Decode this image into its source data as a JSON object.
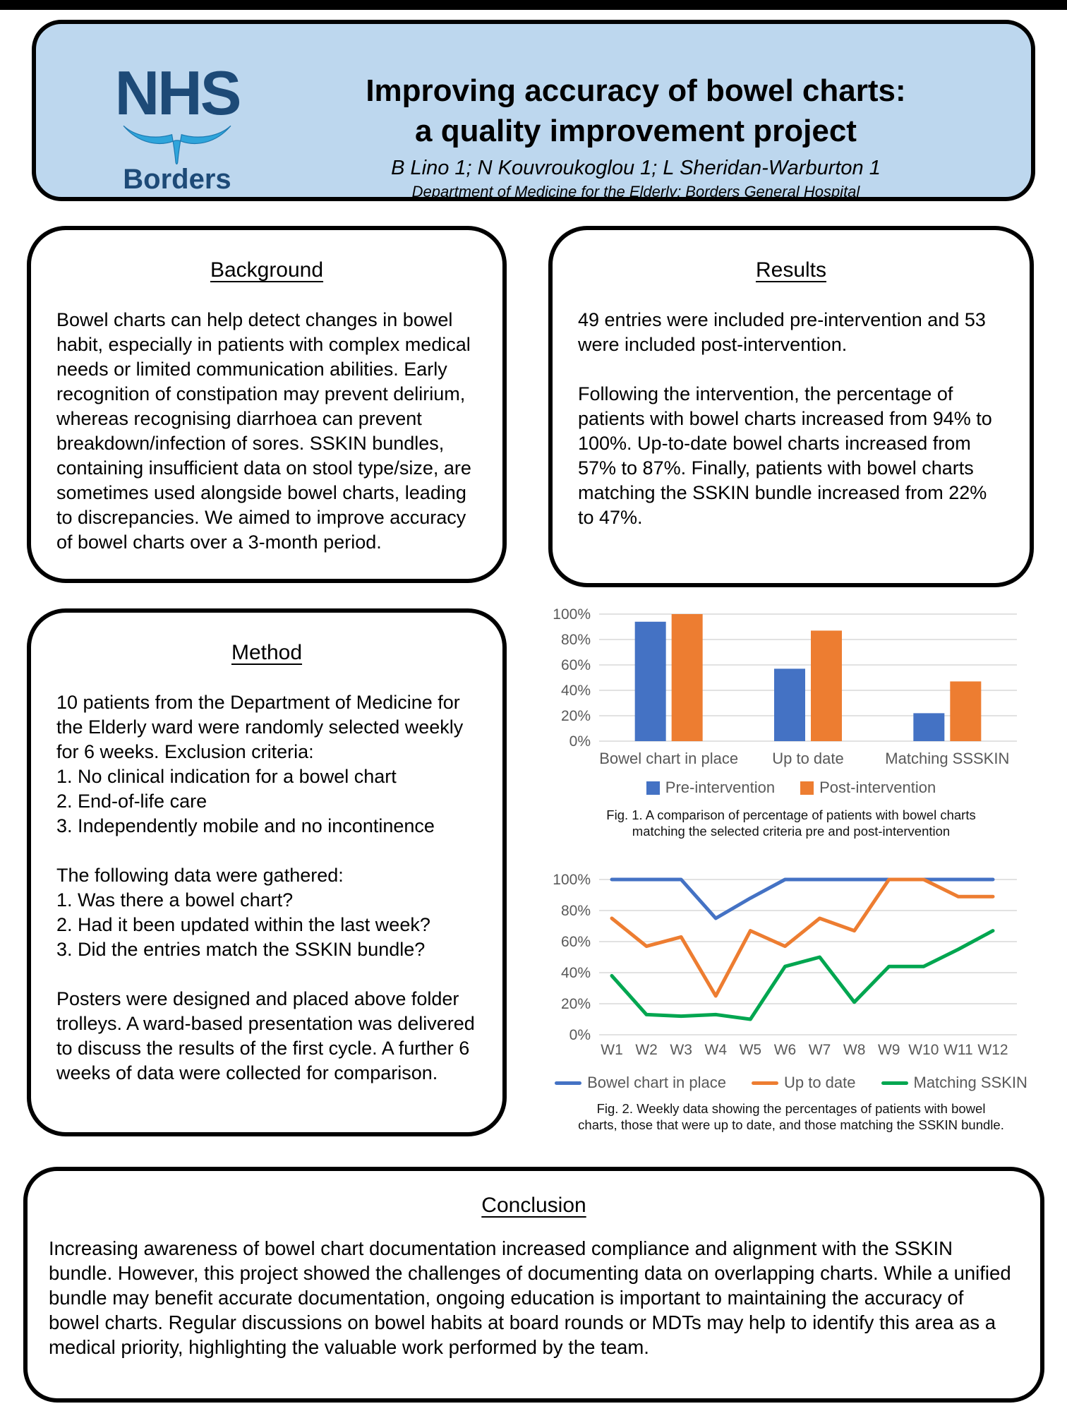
{
  "header": {
    "logo_text": "NHS",
    "logo_subtext": "Borders",
    "title_line1": "Improving accuracy of bowel charts:",
    "title_line2": "a quality improvement project",
    "authors": "B Lino 1; N Kouvroukoglou 1; L Sheridan-Warburton 1",
    "department": "Department of Medicine for the Elderly; Borders General Hospital",
    "background_color": "#bdd7ee",
    "logo_color": "#1d4a77",
    "swoosh_color": "#2fa5db"
  },
  "sections": {
    "background": {
      "heading": "Background",
      "body": "Bowel charts can help detect changes in bowel habit, especially in patients with complex medical needs or limited communication abilities. Early recognition of constipation may prevent delirium, whereas recognising diarrhoea can prevent breakdown/infection of sores. SSKIN bundles, containing insufficient data on stool type/size, are sometimes used alongside bowel charts, leading to discrepancies. We aimed to improve accuracy of bowel charts over a 3-month period."
    },
    "results": {
      "heading": "Results",
      "p1": "49 entries were included pre-intervention and 53 were included post-intervention.",
      "p2": "Following the intervention, the percentage of patients with bowel charts increased from 94% to 100%. Up-to-date bowel charts increased from 57% to 87%. Finally, patients with bowel charts matching the SSKIN bundle increased from 22% to 47%."
    },
    "method": {
      "heading": "Method",
      "p1": "10 patients from the Department of Medicine for the Elderly ward were randomly selected weekly for 6 weeks. Exclusion criteria:",
      "exclusion_list": [
        "1. No clinical indication for a bowel chart",
        "2. End-of-life care",
        "3. Independently mobile and no incontinence"
      ],
      "p2": "The following data were gathered:",
      "data_list": [
        "1. Was there a bowel chart?",
        "2. Had it been updated within the last week?",
        "3. Did the entries match the SSKIN bundle?"
      ],
      "p3": "Posters were designed and placed above folder trolleys. A ward-based presentation was delivered to discuss the results of the first cycle. A further 6 weeks of data were collected for comparison."
    },
    "conclusion": {
      "heading": "Conclusion",
      "body": "Increasing awareness of bowel chart documentation increased compliance and alignment with the SSKIN bundle. However, this project showed the challenges of documenting data on overlapping charts. While a unified bundle may benefit accurate documentation, ongoing education is important to maintaining the accuracy of bowel charts. Regular discussions on bowel habits at board rounds or MDTs may help to identify this area as a medical priority, highlighting the valuable work performed by the team."
    }
  },
  "chart_data": [
    {
      "type": "bar",
      "title": "",
      "categories": [
        "Bowel chart in place",
        "Up to date",
        "Matching SSSKIN"
      ],
      "series": [
        {
          "name": "Pre-intervention",
          "color": "#4472C4",
          "values": [
            94,
            57,
            22
          ]
        },
        {
          "name": "Post-intervention",
          "color": "#ED7D31",
          "values": [
            100,
            87,
            47
          ]
        }
      ],
      "y_ticks": [
        "0%",
        "20%",
        "40%",
        "60%",
        "80%",
        "100%"
      ],
      "ylim": [
        0,
        100
      ],
      "grid": true,
      "legend_position": "bottom",
      "caption_line1": "Fig. 1. A comparison of percentage of patients with bowel charts",
      "caption_line2": "matching the selected criteria pre and post-intervention"
    },
    {
      "type": "line",
      "title": "",
      "x": [
        "W1",
        "W2",
        "W3",
        "W4",
        "W5",
        "W6",
        "W7",
        "W8",
        "W9",
        "W10",
        "W11",
        "W12"
      ],
      "series": [
        {
          "name": "Bowel chart in place",
          "color": "#4472C4",
          "values": [
            100,
            100,
            100,
            75,
            88,
            100,
            100,
            100,
            100,
            100,
            100,
            100
          ]
        },
        {
          "name": "Up to date",
          "color": "#ED7D31",
          "values": [
            75,
            57,
            63,
            25,
            67,
            57,
            75,
            67,
            100,
            100,
            89,
            89
          ]
        },
        {
          "name": "Matching SSKIN",
          "color": "#00A650",
          "values": [
            38,
            13,
            12,
            13,
            10,
            44,
            50,
            21,
            44,
            44,
            55,
            67
          ]
        }
      ],
      "y_ticks": [
        "0%",
        "20%",
        "40%",
        "60%",
        "80%",
        "100%"
      ],
      "ylim": [
        0,
        100
      ],
      "grid": true,
      "legend_position": "bottom",
      "caption_line1": "Fig. 2. Weekly data showing the percentages of patients with bowel",
      "caption_line2": "charts, those that were up to date, and those matching the SSKIN bundle."
    }
  ]
}
